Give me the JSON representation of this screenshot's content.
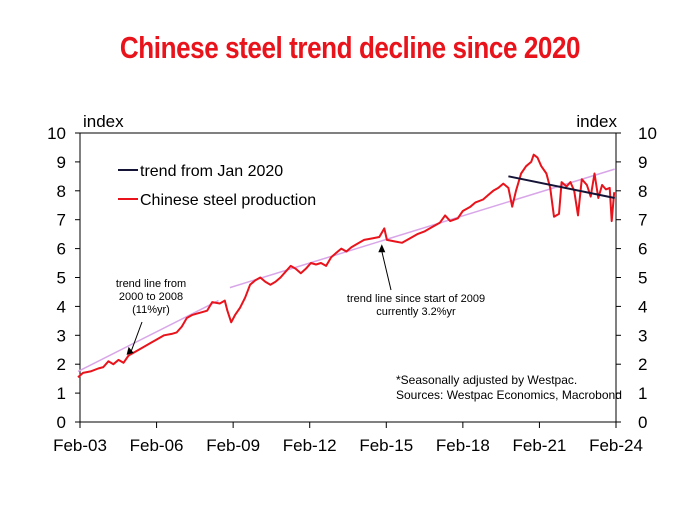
{
  "title": "Chinese steel trend decline since 2020",
  "chart_data": {
    "type": "line",
    "x_categories": [
      "Feb-03",
      "Feb-06",
      "Feb-09",
      "Feb-12",
      "Feb-15",
      "Feb-18",
      "Feb-21",
      "Feb-24"
    ],
    "ylim": [
      0,
      10
    ],
    "yticks": [
      0,
      1,
      2,
      3,
      4,
      5,
      6,
      7,
      8,
      9,
      10
    ],
    "left_unit": "index",
    "right_unit": "index",
    "xlim": [
      2003.08,
      2024.25
    ],
    "series": [
      {
        "name": "Chinese steel production",
        "color": "#e8131b",
        "points": [
          [
            2003.0,
            1.55
          ],
          [
            2003.2,
            1.7
          ],
          [
            2003.5,
            1.75
          ],
          [
            2003.8,
            1.85
          ],
          [
            2004.0,
            1.9
          ],
          [
            2004.2,
            2.1
          ],
          [
            2004.4,
            2.0
          ],
          [
            2004.6,
            2.15
          ],
          [
            2004.8,
            2.05
          ],
          [
            2005.0,
            2.3
          ],
          [
            2005.3,
            2.45
          ],
          [
            2005.6,
            2.6
          ],
          [
            2005.9,
            2.75
          ],
          [
            2006.1,
            2.85
          ],
          [
            2006.4,
            3.0
          ],
          [
            2006.7,
            3.05
          ],
          [
            2006.9,
            3.1
          ],
          [
            2007.1,
            3.3
          ],
          [
            2007.3,
            3.6
          ],
          [
            2007.5,
            3.7
          ],
          [
            2007.7,
            3.75
          ],
          [
            2007.9,
            3.8
          ],
          [
            2008.1,
            3.85
          ],
          [
            2008.3,
            4.15
          ],
          [
            2008.6,
            4.1
          ],
          [
            2008.8,
            4.2
          ],
          [
            2008.9,
            3.85
          ],
          [
            2009.05,
            3.45
          ],
          [
            2009.2,
            3.7
          ],
          [
            2009.4,
            3.95
          ],
          [
            2009.6,
            4.3
          ],
          [
            2009.8,
            4.75
          ],
          [
            2010.0,
            4.9
          ],
          [
            2010.2,
            5.0
          ],
          [
            2010.4,
            4.85
          ],
          [
            2010.6,
            4.75
          ],
          [
            2010.8,
            4.85
          ],
          [
            2011.0,
            5.0
          ],
          [
            2011.2,
            5.2
          ],
          [
            2011.4,
            5.4
          ],
          [
            2011.6,
            5.3
          ],
          [
            2011.8,
            5.15
          ],
          [
            2012.0,
            5.3
          ],
          [
            2012.2,
            5.5
          ],
          [
            2012.4,
            5.45
          ],
          [
            2012.6,
            5.5
          ],
          [
            2012.8,
            5.4
          ],
          [
            2013.0,
            5.7
          ],
          [
            2013.2,
            5.85
          ],
          [
            2013.4,
            6.0
          ],
          [
            2013.6,
            5.9
          ],
          [
            2013.8,
            6.05
          ],
          [
            2014.0,
            6.15
          ],
          [
            2014.3,
            6.3
          ],
          [
            2014.6,
            6.35
          ],
          [
            2014.9,
            6.4
          ],
          [
            2015.1,
            6.7
          ],
          [
            2015.2,
            6.3
          ],
          [
            2015.5,
            6.25
          ],
          [
            2015.8,
            6.2
          ],
          [
            2016.1,
            6.35
          ],
          [
            2016.4,
            6.5
          ],
          [
            2016.7,
            6.6
          ],
          [
            2017.0,
            6.75
          ],
          [
            2017.3,
            6.9
          ],
          [
            2017.5,
            7.15
          ],
          [
            2017.7,
            6.95
          ],
          [
            2018.0,
            7.05
          ],
          [
            2018.2,
            7.3
          ],
          [
            2018.5,
            7.45
          ],
          [
            2018.7,
            7.6
          ],
          [
            2019.0,
            7.7
          ],
          [
            2019.2,
            7.85
          ],
          [
            2019.4,
            8.0
          ],
          [
            2019.6,
            8.1
          ],
          [
            2019.8,
            8.25
          ],
          [
            2020.0,
            8.1
          ],
          [
            2020.15,
            7.45
          ],
          [
            2020.3,
            8.0
          ],
          [
            2020.5,
            8.6
          ],
          [
            2020.7,
            8.85
          ],
          [
            2020.9,
            9.0
          ],
          [
            2021.0,
            9.25
          ],
          [
            2021.15,
            9.15
          ],
          [
            2021.3,
            8.85
          ],
          [
            2021.5,
            8.6
          ],
          [
            2021.65,
            8.1
          ],
          [
            2021.8,
            7.1
          ],
          [
            2022.0,
            7.2
          ],
          [
            2022.1,
            8.3
          ],
          [
            2022.3,
            8.15
          ],
          [
            2022.45,
            8.3
          ],
          [
            2022.6,
            8.0
          ],
          [
            2022.75,
            7.15
          ],
          [
            2022.9,
            8.4
          ],
          [
            2023.1,
            8.2
          ],
          [
            2023.25,
            7.8
          ],
          [
            2023.4,
            8.6
          ],
          [
            2023.55,
            7.75
          ],
          [
            2023.7,
            8.2
          ],
          [
            2023.85,
            8.05
          ],
          [
            2024.0,
            8.1
          ],
          [
            2024.08,
            6.95
          ],
          [
            2024.18,
            7.95
          ]
        ]
      },
      {
        "name": "trend from Jan 2020",
        "color": "#151436",
        "points": [
          [
            2020.0,
            8.5
          ],
          [
            2024.2,
            7.75
          ]
        ]
      },
      {
        "color": "#d8a6e8",
        "points": [
          [
            2003.0,
            1.75
          ],
          [
            2008.55,
            4.2
          ]
        ]
      },
      {
        "color": "#d8a6e8",
        "points": [
          [
            2009.0,
            4.65
          ],
          [
            2024.2,
            8.75
          ]
        ]
      }
    ],
    "legend": [
      {
        "label": "trend from Jan 2020",
        "color": "#151436"
      },
      {
        "label": "Chinese steel production",
        "color": "#e8131b"
      }
    ],
    "annotations": [
      {
        "lines": [
          "trend line from",
          "2000 to 2008",
          "(11%yr)"
        ],
        "arrow_to": [
          2005.0,
          2.6
        ]
      },
      {
        "lines": [
          "trend line since start of 2009",
          "currently 3.2%yr"
        ],
        "arrow_to": [
          2015.0,
          6.15
        ]
      }
    ],
    "notes": [
      "*Seasonally adjusted by Westpac.",
      "Sources: Westpac Economics, Macrobond"
    ]
  }
}
